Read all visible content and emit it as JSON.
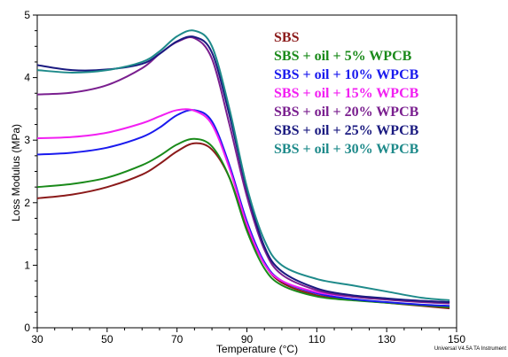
{
  "chart_data": {
    "type": "line",
    "title": "",
    "xlabel": "Temperature (°C)",
    "ylabel": "Loss Modulus (MPa)",
    "xlim": [
      30,
      150
    ],
    "ylim": [
      0,
      5
    ],
    "xticks": [
      30,
      50,
      70,
      90,
      110,
      130,
      150
    ],
    "yticks": [
      0,
      1,
      2,
      3,
      4,
      5
    ],
    "grid": false,
    "legend_position": "top-right",
    "footer": "Universal V4.5A TA Instrument",
    "series": [
      {
        "name": "SBS",
        "color": "#8b1a1a",
        "x": [
          30,
          40,
          50,
          60,
          65,
          70,
          75,
          80,
          85,
          90,
          95,
          100,
          110,
          120,
          130,
          140,
          148
        ],
        "y": [
          2.07,
          2.13,
          2.25,
          2.45,
          2.62,
          2.82,
          2.95,
          2.85,
          2.4,
          1.6,
          1.02,
          0.72,
          0.52,
          0.45,
          0.4,
          0.35,
          0.31
        ]
      },
      {
        "name": "SBS + oil + 5% WPCB",
        "color": "#1a8a1a",
        "x": [
          30,
          40,
          50,
          60,
          65,
          70,
          75,
          80,
          85,
          90,
          95,
          100,
          110,
          120,
          130,
          140,
          148
        ],
        "y": [
          2.25,
          2.3,
          2.4,
          2.6,
          2.75,
          2.93,
          3.02,
          2.9,
          2.4,
          1.55,
          0.95,
          0.68,
          0.5,
          0.44,
          0.4,
          0.36,
          0.33
        ]
      },
      {
        "name": "SBS + oil + 10% WPCB",
        "color": "#1a1aee",
        "x": [
          30,
          40,
          50,
          60,
          65,
          70,
          75,
          80,
          85,
          90,
          95,
          100,
          110,
          120,
          130,
          140,
          148
        ],
        "y": [
          2.77,
          2.8,
          2.88,
          3.05,
          3.2,
          3.4,
          3.48,
          3.3,
          2.6,
          1.7,
          1.05,
          0.75,
          0.55,
          0.46,
          0.41,
          0.37,
          0.35
        ]
      },
      {
        "name": "SBS + oil + 15% WPCB",
        "color": "#f21ff2",
        "x": [
          30,
          40,
          50,
          60,
          65,
          70,
          75,
          80,
          85,
          90,
          95,
          100,
          110,
          120,
          130,
          140,
          148
        ],
        "y": [
          3.03,
          3.05,
          3.12,
          3.27,
          3.38,
          3.48,
          3.47,
          3.25,
          2.55,
          1.65,
          1.02,
          0.75,
          0.57,
          0.5,
          0.46,
          0.43,
          0.41
        ]
      },
      {
        "name": "SBS + oil + 20% WPCB",
        "color": "#7a1f8f",
        "x": [
          30,
          40,
          50,
          60,
          65,
          70,
          75,
          80,
          85,
          90,
          95,
          100,
          110,
          120,
          130,
          140,
          148
        ],
        "y": [
          3.73,
          3.76,
          3.88,
          4.15,
          4.38,
          4.57,
          4.63,
          4.3,
          3.25,
          2.1,
          1.25,
          0.85,
          0.6,
          0.5,
          0.45,
          0.41,
          0.39
        ]
      },
      {
        "name": "SBS + oil + 25% WPCB",
        "color": "#1a1a80",
        "x": [
          30,
          40,
          50,
          60,
          65,
          70,
          75,
          80,
          85,
          90,
          95,
          100,
          110,
          120,
          130,
          140,
          148
        ],
        "y": [
          4.2,
          4.12,
          4.13,
          4.22,
          4.38,
          4.58,
          4.65,
          4.4,
          3.4,
          2.2,
          1.3,
          0.9,
          0.63,
          0.52,
          0.47,
          0.43,
          0.41
        ]
      },
      {
        "name": "SBS + oil + 30% WPCB",
        "color": "#1e8a8a",
        "x": [
          30,
          40,
          50,
          60,
          65,
          70,
          75,
          80,
          85,
          90,
          95,
          100,
          110,
          120,
          130,
          140,
          148
        ],
        "y": [
          4.12,
          4.08,
          4.12,
          4.25,
          4.42,
          4.66,
          4.75,
          4.5,
          3.5,
          2.25,
          1.4,
          1.0,
          0.78,
          0.68,
          0.58,
          0.48,
          0.44
        ]
      }
    ]
  }
}
